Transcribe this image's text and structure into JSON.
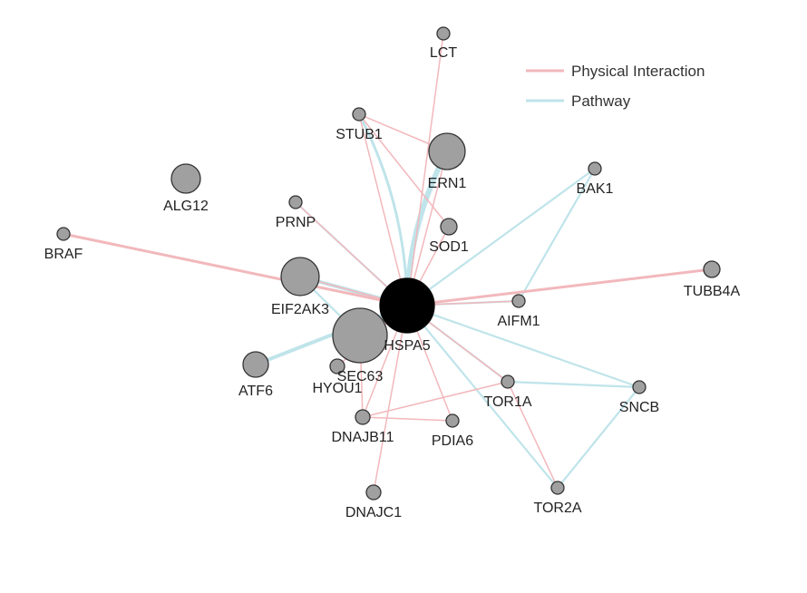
{
  "legend": {
    "physical_label": "Physical Interaction",
    "pathway_label": "Pathway"
  },
  "colors": {
    "physical": "#f2b8bc",
    "pathway": "#bfe4ea",
    "node_fill": "#a0a0a0",
    "node_stroke": "#333333",
    "hub_fill": "#000000"
  },
  "nodes": [
    {
      "id": "HSPA5",
      "label": "HSPA5",
      "hub": true
    },
    {
      "id": "LCT",
      "label": "LCT"
    },
    {
      "id": "STUB1",
      "label": "STUB1"
    },
    {
      "id": "ERN1",
      "label": "ERN1"
    },
    {
      "id": "ALG12",
      "label": "ALG12"
    },
    {
      "id": "PRNP",
      "label": "PRNP"
    },
    {
      "id": "SOD1",
      "label": "SOD1"
    },
    {
      "id": "BAK1",
      "label": "BAK1"
    },
    {
      "id": "BRAF",
      "label": "BRAF"
    },
    {
      "id": "EIF2AK3",
      "label": "EIF2AK3"
    },
    {
      "id": "TUBB4A",
      "label": "TUBB4A"
    },
    {
      "id": "AIFM1",
      "label": "AIFM1"
    },
    {
      "id": "SEC63",
      "label": "SEC63"
    },
    {
      "id": "ATF6",
      "label": "ATF6"
    },
    {
      "id": "HYOU1",
      "label": "HYOU1"
    },
    {
      "id": "TOR1A",
      "label": "TOR1A"
    },
    {
      "id": "SNCB",
      "label": "SNCB"
    },
    {
      "id": "DNAJB11",
      "label": "DNAJB11"
    },
    {
      "id": "PDIA6",
      "label": "PDIA6"
    },
    {
      "id": "DNAJC1",
      "label": "DNAJC1"
    },
    {
      "id": "TOR2A",
      "label": "TOR2A"
    }
  ],
  "edges": [
    {
      "source": "HSPA5",
      "target": "LCT",
      "type": "physical"
    },
    {
      "source": "HSPA5",
      "target": "STUB1",
      "type": "physical"
    },
    {
      "source": "HSPA5",
      "target": "ERN1",
      "type": "physical"
    },
    {
      "source": "HSPA5",
      "target": "PRNP",
      "type": "physical"
    },
    {
      "source": "HSPA5",
      "target": "SOD1",
      "type": "physical"
    },
    {
      "source": "HSPA5",
      "target": "BRAF",
      "type": "physical"
    },
    {
      "source": "HSPA5",
      "target": "EIF2AK3",
      "type": "physical"
    },
    {
      "source": "HSPA5",
      "target": "TUBB4A",
      "type": "physical"
    },
    {
      "source": "HSPA5",
      "target": "AIFM1",
      "type": "physical"
    },
    {
      "source": "HSPA5",
      "target": "SEC63",
      "type": "physical"
    },
    {
      "source": "HSPA5",
      "target": "HYOU1",
      "type": "physical"
    },
    {
      "source": "HSPA5",
      "target": "DNAJB11",
      "type": "physical"
    },
    {
      "source": "HSPA5",
      "target": "PDIA6",
      "type": "physical"
    },
    {
      "source": "HSPA5",
      "target": "DNAJC1",
      "type": "physical"
    },
    {
      "source": "HSPA5",
      "target": "TOR1A",
      "type": "physical"
    },
    {
      "source": "STUB1",
      "target": "ERN1",
      "type": "physical"
    },
    {
      "source": "STUB1",
      "target": "SOD1",
      "type": "physical"
    },
    {
      "source": "TOR1A",
      "target": "TOR2A",
      "type": "physical"
    },
    {
      "source": "TOR1A",
      "target": "DNAJB11",
      "type": "physical"
    },
    {
      "source": "DNAJB11",
      "target": "PDIA6",
      "type": "physical"
    },
    {
      "source": "DNAJB11",
      "target": "SEC63",
      "type": "physical"
    },
    {
      "source": "HSPA5",
      "target": "ERN1",
      "type": "pathway"
    },
    {
      "source": "HSPA5",
      "target": "STUB1",
      "type": "pathway"
    },
    {
      "source": "HSPA5",
      "target": "PRNP",
      "type": "pathway"
    },
    {
      "source": "HSPA5",
      "target": "EIF2AK3",
      "type": "pathway"
    },
    {
      "source": "HSPA5",
      "target": "BAK1",
      "type": "pathway"
    },
    {
      "source": "HSPA5",
      "target": "AIFM1",
      "type": "pathway"
    },
    {
      "source": "HSPA5",
      "target": "SEC63",
      "type": "pathway"
    },
    {
      "source": "HSPA5",
      "target": "ATF6",
      "type": "pathway"
    },
    {
      "source": "HSPA5",
      "target": "TOR1A",
      "type": "pathway"
    },
    {
      "source": "HSPA5",
      "target": "SNCB",
      "type": "pathway"
    },
    {
      "source": "HSPA5",
      "target": "TOR2A",
      "type": "pathway"
    },
    {
      "source": "AIFM1",
      "target": "BAK1",
      "type": "pathway"
    },
    {
      "source": "TOR1A",
      "target": "SNCB",
      "type": "pathway"
    },
    {
      "source": "SNCB",
      "target": "TOR2A",
      "type": "pathway"
    },
    {
      "source": "EIF2AK3",
      "target": "SEC63",
      "type": "pathway"
    }
  ]
}
